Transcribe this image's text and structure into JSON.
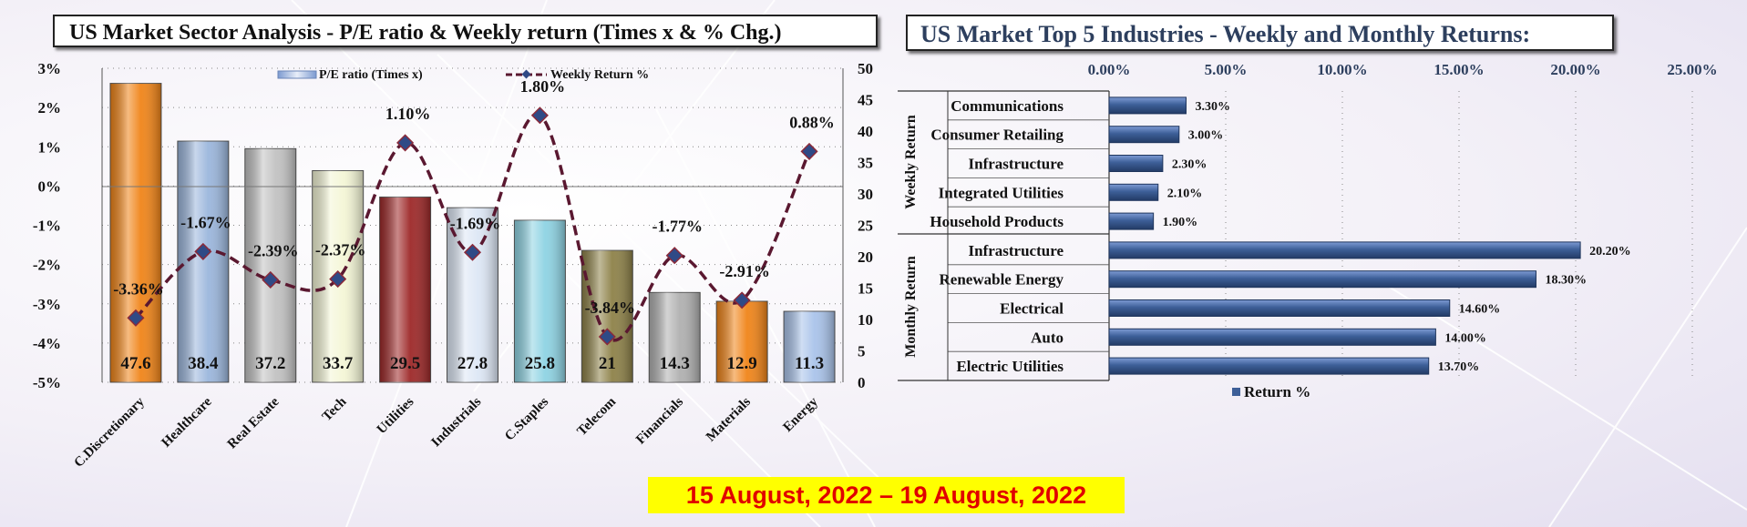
{
  "left_panel": {
    "title": "US Market Sector Analysis - P/E ratio & Weekly return (Times x & % Chg.)",
    "legend_pe": "P/E  ratio (Times x)",
    "legend_weekly": "Weekly Return %"
  },
  "right_panel": {
    "title": "US Market Top 5 Industries - Weekly and Monthly Returns:",
    "group_weekly": "Weekly Return",
    "group_monthly": "Monthly Return",
    "legend_return": "Return %"
  },
  "date_banner": "15 August, 2022 – 19 August, 2022",
  "colors": {
    "bar_blue": "#3d5f98",
    "line_dash": "#5a1830",
    "marker": "#2f4a86",
    "banner_bg": "#ffff00",
    "banner_text": "#e00000"
  },
  "chart_data": [
    {
      "type": "bar",
      "categories": [
        "C.Discretionary",
        "Healthcare",
        "Real Estate",
        "Tech",
        "Utilities",
        "Industrials",
        "C.Staples",
        "Telecom",
        "Financials",
        "Materials",
        "Energy"
      ],
      "series": [
        {
          "name": "P/E  ratio (Times x)",
          "axis": "right",
          "values": [
            47.6,
            38.4,
            37.2,
            33.7,
            29.5,
            27.8,
            25.8,
            21,
            14.3,
            12.9,
            11.3
          ],
          "labels": [
            "47.6",
            "38.4",
            "37.2",
            "33.7",
            "29.5",
            "27.8",
            "25.8",
            "21",
            "14.3",
            "12.9",
            "11.3"
          ],
          "colors": [
            "#f08418",
            "#9bb6dc",
            "#c2c2c2",
            "#f4f6d6",
            "#9d2828",
            "#dde7f5",
            "#8ed3e3",
            "#8d8148",
            "#b0b0b0",
            "#f08418",
            "#a9c3ea"
          ]
        },
        {
          "name": "Weekly Return %",
          "type": "line",
          "axis": "left",
          "values": [
            -3.36,
            -1.67,
            -2.39,
            -2.37,
            1.1,
            -1.69,
            1.8,
            -3.84,
            -1.77,
            -2.91,
            0.88
          ],
          "labels": [
            "-3.36%",
            "-1.67%",
            "-2.39%",
            "-2.37%",
            "1.10%",
            "-1.69%",
            "1.80%",
            "-3.84%",
            "-1.77%",
            "-2.91%",
            "0.88%"
          ]
        }
      ],
      "y_left": {
        "range": [
          -5,
          3
        ],
        "ticks": [
          "3%",
          "2%",
          "1%",
          "0%",
          "-1%",
          "-2%",
          "-3%",
          "-4%",
          "-5%"
        ]
      },
      "y_right": {
        "range": [
          0,
          50
        ],
        "ticks": [
          "50",
          "45",
          "40",
          "35",
          "30",
          "25",
          "20",
          "15",
          "10",
          "5",
          "0"
        ]
      },
      "legend_position": "top"
    },
    {
      "type": "bar",
      "orientation": "horizontal",
      "x_ticks": [
        "0.00%",
        "5.00%",
        "10.00%",
        "15.00%",
        "20.00%",
        "25.00%"
      ],
      "x_range": [
        0,
        25
      ],
      "legend_position": "bottom",
      "groups": [
        {
          "name": "Weekly Return",
          "items": [
            {
              "label": "Communications",
              "value": 3.3,
              "value_label": "3.30%"
            },
            {
              "label": "Consumer Retailing",
              "value": 3.0,
              "value_label": "3.00%"
            },
            {
              "label": "Infrastructure",
              "value": 2.3,
              "value_label": "2.30%"
            },
            {
              "label": "Integrated Utilities",
              "value": 2.1,
              "value_label": "2.10%"
            },
            {
              "label": "Household Products",
              "value": 1.9,
              "value_label": "1.90%"
            }
          ]
        },
        {
          "name": "Monthly Return",
          "items": [
            {
              "label": "Infrastructure",
              "value": 20.2,
              "value_label": "20.20%"
            },
            {
              "label": "Renewable Energy",
              "value": 18.3,
              "value_label": "18.30%"
            },
            {
              "label": "Electrical",
              "value": 14.6,
              "value_label": "14.60%"
            },
            {
              "label": "Auto",
              "value": 14.0,
              "value_label": "14.00%"
            },
            {
              "label": "Electric Utilities",
              "value": 13.7,
              "value_label": "13.70%"
            }
          ]
        }
      ],
      "series": [
        {
          "name": "Return %"
        }
      ]
    }
  ]
}
